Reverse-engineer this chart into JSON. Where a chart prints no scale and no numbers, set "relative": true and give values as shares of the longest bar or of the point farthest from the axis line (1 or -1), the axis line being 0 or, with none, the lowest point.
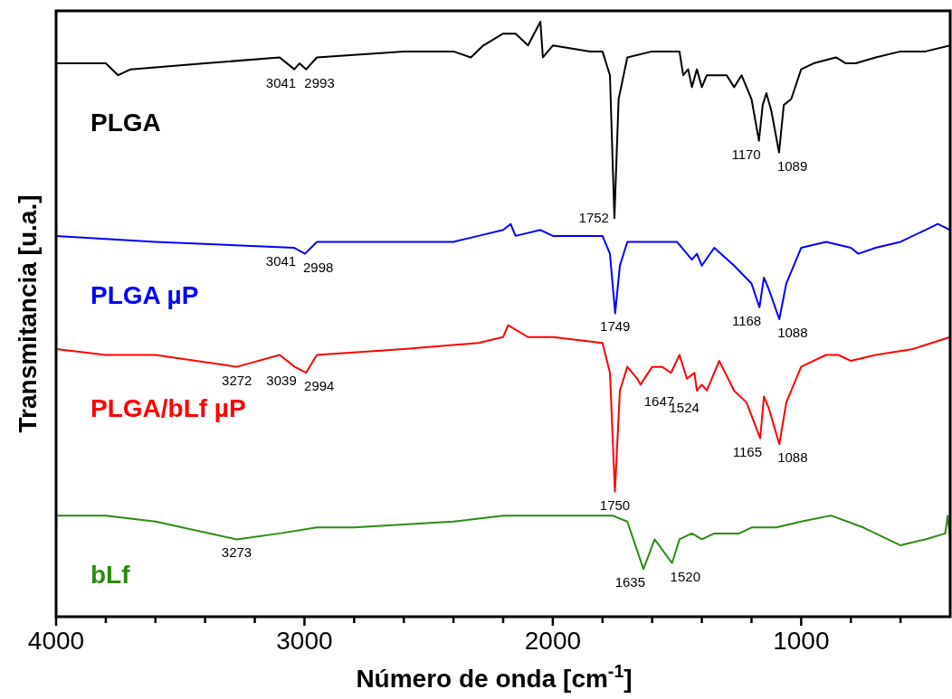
{
  "chart_data": {
    "type": "line",
    "relative": true,
    "xlabel": "Número de onda [cm$^{-1}$]",
    "ylabel": "Transmitancia [u.a.]",
    "xlim": [
      4000,
      400
    ],
    "xticks": [
      4000,
      {
        "value": 3800,
        "label": null
      },
      {
        "value": 3600,
        "label": null
      },
      {
        "value": 3400,
        "label": null
      },
      {
        "value": 3200,
        "label": null
      },
      3000,
      {
        "value": 2800,
        "label": null
      },
      {
        "value": 2600,
        "label": null
      },
      {
        "value": 2400,
        "label": null
      },
      {
        "value": 2200,
        "label": null
      },
      2000,
      {
        "value": 1800,
        "label": null
      },
      {
        "value": 1600,
        "label": null
      },
      {
        "value": 1400,
        "label": null
      },
      {
        "value": 1200,
        "label": null
      },
      1000,
      {
        "value": 800,
        "label": null
      },
      {
        "value": 600,
        "label": null
      }
    ],
    "legend": false,
    "grid": false,
    "marker": "none",
    "line_style": "solid",
    "series": [
      {
        "name": "PLGA",
        "color": "#000000",
        "x": [
          4000,
          3800,
          3750,
          3700,
          3400,
          3100,
          3041,
          3020,
          2993,
          2950,
          2600,
          2400,
          2330,
          2280,
          2200,
          2150,
          2100,
          2050,
          2040,
          2000,
          1850,
          1800,
          1770,
          1752,
          1735,
          1700,
          1600,
          1490,
          1475,
          1455,
          1440,
          1420,
          1400,
          1380,
          1300,
          1270,
          1240,
          1200,
          1170,
          1155,
          1140,
          1120,
          1089,
          1070,
          1040,
          1000,
          950,
          860,
          820,
          780,
          700,
          600,
          500,
          400
        ],
        "values": [
          0.93,
          0.93,
          0.91,
          0.92,
          0.93,
          0.94,
          0.92,
          0.93,
          0.92,
          0.94,
          0.95,
          0.95,
          0.94,
          0.96,
          0.98,
          0.98,
          0.96,
          1.0,
          0.94,
          0.96,
          0.95,
          0.95,
          0.91,
          0.67,
          0.87,
          0.94,
          0.95,
          0.95,
          0.91,
          0.92,
          0.89,
          0.92,
          0.89,
          0.91,
          0.91,
          0.89,
          0.91,
          0.87,
          0.8,
          0.86,
          0.88,
          0.85,
          0.78,
          0.86,
          0.87,
          0.92,
          0.93,
          0.94,
          0.93,
          0.93,
          0.94,
          0.95,
          0.95,
          0.96
        ]
      },
      {
        "name": "PLGA µP",
        "color": "#0000ff",
        "x": [
          4000,
          3600,
          3041,
          2998,
          2950,
          2400,
          2300,
          2200,
          2170,
          2150,
          2050,
          2000,
          1800,
          1770,
          1749,
          1730,
          1700,
          1500,
          1460,
          1440,
          1420,
          1400,
          1350,
          1270,
          1200,
          1168,
          1150,
          1130,
          1088,
          1060,
          1000,
          900,
          800,
          770,
          700,
          600,
          500,
          450,
          400
        ],
        "values": [
          0.64,
          0.63,
          0.62,
          0.61,
          0.63,
          0.63,
          0.64,
          0.65,
          0.66,
          0.64,
          0.65,
          0.64,
          0.64,
          0.61,
          0.51,
          0.59,
          0.63,
          0.63,
          0.61,
          0.6,
          0.61,
          0.59,
          0.62,
          0.59,
          0.56,
          0.52,
          0.57,
          0.55,
          0.5,
          0.56,
          0.62,
          0.63,
          0.62,
          0.61,
          0.62,
          0.63,
          0.65,
          0.66,
          0.65
        ]
      },
      {
        "name": "PLGA/bLf µP",
        "color": "#ff0000",
        "x": [
          4000,
          3800,
          3600,
          3272,
          3100,
          3039,
          2994,
          2950,
          2600,
          2300,
          2200,
          2180,
          2100,
          2000,
          1800,
          1770,
          1750,
          1730,
          1700,
          1660,
          1647,
          1600,
          1560,
          1524,
          1490,
          1460,
          1430,
          1420,
          1400,
          1380,
          1330,
          1270,
          1220,
          1165,
          1150,
          1130,
          1088,
          1060,
          1000,
          900,
          850,
          800,
          700,
          550,
          400
        ],
        "values": [
          0.45,
          0.44,
          0.44,
          0.42,
          0.44,
          0.42,
          0.41,
          0.44,
          0.45,
          0.46,
          0.47,
          0.49,
          0.47,
          0.47,
          0.46,
          0.41,
          0.21,
          0.38,
          0.42,
          0.4,
          0.39,
          0.42,
          0.42,
          0.41,
          0.44,
          0.4,
          0.41,
          0.38,
          0.39,
          0.38,
          0.43,
          0.38,
          0.36,
          0.3,
          0.37,
          0.35,
          0.29,
          0.36,
          0.42,
          0.44,
          0.44,
          0.43,
          0.44,
          0.45,
          0.47
        ]
      },
      {
        "name": "bLf",
        "color": "#2e8b12",
        "x": [
          4000,
          3800,
          3600,
          3273,
          3100,
          2950,
          2800,
          2400,
          2200,
          2000,
          1760,
          1700,
          1635,
          1590,
          1520,
          1490,
          1440,
          1400,
          1350,
          1250,
          1200,
          1100,
          1000,
          880,
          750,
          600,
          500,
          420,
          410,
          400
        ],
        "values": [
          0.17,
          0.17,
          0.16,
          0.13,
          0.14,
          0.15,
          0.15,
          0.16,
          0.17,
          0.17,
          0.17,
          0.16,
          0.08,
          0.13,
          0.09,
          0.13,
          0.14,
          0.13,
          0.14,
          0.14,
          0.15,
          0.15,
          0.16,
          0.17,
          0.15,
          0.12,
          0.13,
          0.14,
          0.17,
          0.13
        ]
      }
    ],
    "annotations": [
      {
        "text": "3041",
        "x": 3041,
        "y": 0.92
      },
      {
        "text": "2993",
        "x": 2993,
        "y": 0.92
      },
      {
        "text": "1752",
        "x": 1752,
        "y": 0.67
      },
      {
        "text": "1170",
        "x": 1170,
        "y": 0.8
      },
      {
        "text": "1089",
        "x": 1089,
        "y": 0.78
      },
      {
        "text": "3041",
        "x": 3041,
        "y": 0.62
      },
      {
        "text": "2998",
        "x": 2998,
        "y": 0.61
      },
      {
        "text": "1749",
        "x": 1749,
        "y": 0.51
      },
      {
        "text": "1168",
        "x": 1168,
        "y": 0.52
      },
      {
        "text": "1088",
        "x": 1088,
        "y": 0.5
      },
      {
        "text": "3272",
        "x": 3272,
        "y": 0.42
      },
      {
        "text": "3039",
        "x": 3039,
        "y": 0.42
      },
      {
        "text": "2994",
        "x": 2994,
        "y": 0.41
      },
      {
        "text": "1750",
        "x": 1750,
        "y": 0.21
      },
      {
        "text": "1647",
        "x": 1647,
        "y": 0.39
      },
      {
        "text": "1524",
        "x": 1524,
        "y": 0.41
      },
      {
        "text": "1165",
        "x": 1165,
        "y": 0.3
      },
      {
        "text": "1088",
        "x": 1088,
        "y": 0.29
      },
      {
        "text": "3273",
        "x": 3273,
        "y": 0.13
      },
      {
        "text": "1635",
        "x": 1635,
        "y": 0.08
      },
      {
        "text": "1520",
        "x": 1520,
        "y": 0.09
      }
    ]
  }
}
